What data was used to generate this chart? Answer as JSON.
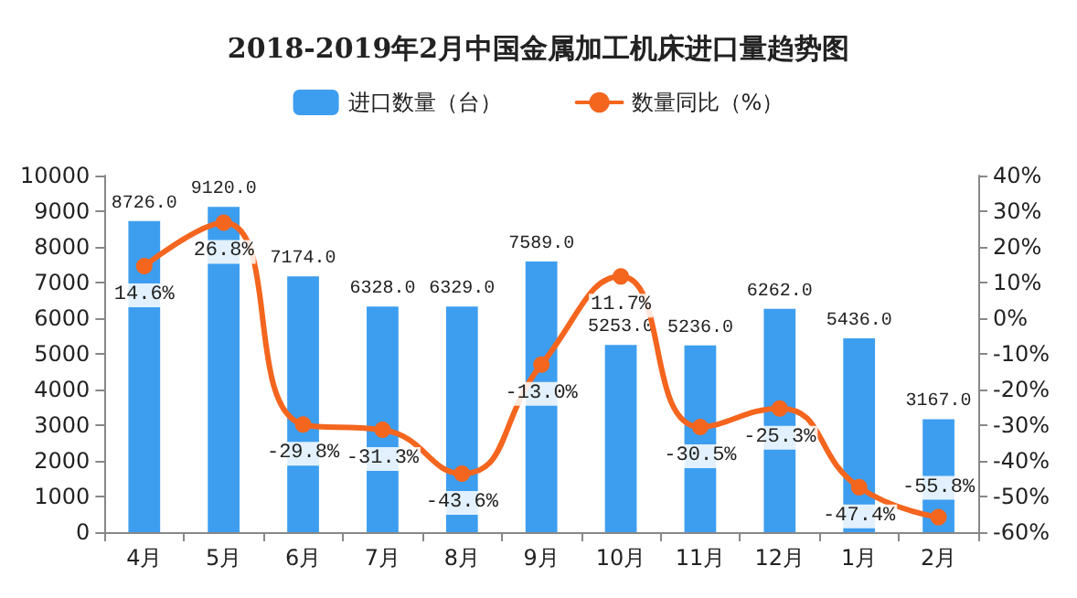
{
  "chart_data": {
    "type": "bar",
    "title": "2018-2019年2月中国金属加工机床进口量趋势图",
    "categories": [
      "4月",
      "5月",
      "6月",
      "7月",
      "8月",
      "9月",
      "10月",
      "11月",
      "12月",
      "1月",
      "2月"
    ],
    "series": [
      {
        "name": "进口数量（台）",
        "color": "#3d9ef0",
        "values": [
          8726,
          9120,
          7174,
          6328,
          6329,
          7589,
          5253,
          5236,
          6262,
          5436,
          3167
        ],
        "value_labels": [
          "8726.0",
          "9120.0",
          "7174.0",
          "6328.0",
          "6329.0",
          "7589.0",
          "5253.0",
          "5236.0",
          "6262.0",
          "5436.0",
          "3167.0"
        ]
      },
      {
        "name": "数量同比（%）",
        "type": "line",
        "axis": "y2",
        "color": "#f4651e",
        "marker": "circle",
        "values": [
          14.6,
          26.8,
          -29.8,
          -31.3,
          -43.6,
          -13.0,
          11.7,
          -30.5,
          -25.3,
          -47.4,
          -55.8
        ],
        "value_labels": [
          "14.6%",
          "26.8%",
          "-29.8%",
          "-31.3%",
          "-43.6%",
          "-13.0%",
          "11.7%",
          "-30.5%",
          "-25.3%",
          "-47.4%",
          "-55.8%"
        ]
      }
    ],
    "ylim": [
      0,
      10000
    ],
    "yticks": [
      0,
      1000,
      2000,
      3000,
      4000,
      5000,
      6000,
      7000,
      8000,
      9000,
      10000
    ],
    "y2lim": [
      -60,
      40
    ],
    "y2ticks": [
      {
        "value": -60,
        "label": "-60%"
      },
      {
        "value": -50,
        "label": "-50%"
      },
      {
        "value": -40,
        "label": "-40%"
      },
      {
        "value": -30,
        "label": "-30%"
      },
      {
        "value": -20,
        "label": "-20%"
      },
      {
        "value": -10,
        "label": "-10%"
      },
      {
        "value": 0,
        "label": "0%"
      },
      {
        "value": 10,
        "label": "10%"
      },
      {
        "value": 20,
        "label": "20%"
      },
      {
        "value": 30,
        "label": "30%"
      },
      {
        "value": 40,
        "label": "40%"
      }
    ],
    "grid": false,
    "legend": "top"
  }
}
